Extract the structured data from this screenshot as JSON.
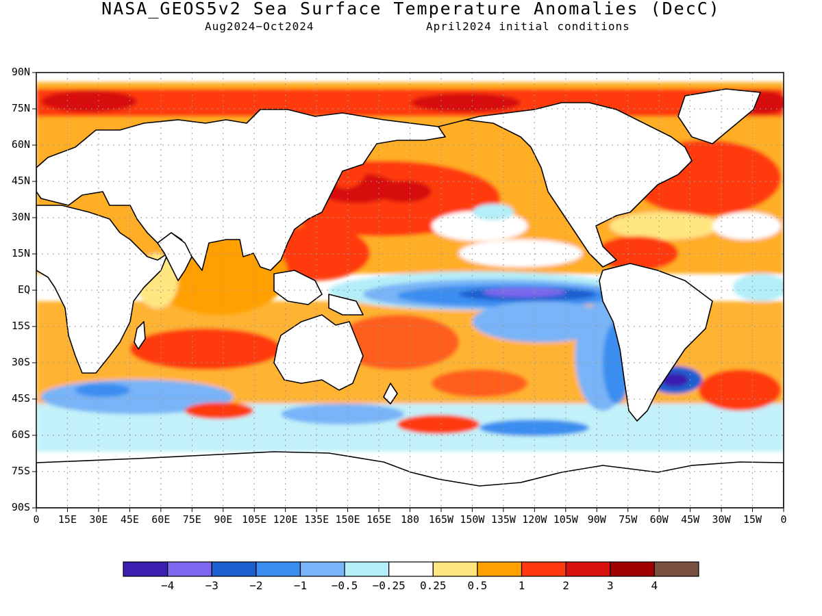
{
  "title": "NASA_GEOS5v2 Sea Surface Temperature Anomalies (DecC)",
  "subtitle_left": "Aug2024−Oct2024",
  "subtitle_right": "April2024 initial conditions",
  "lat_labels": [
    "90N",
    "75N",
    "60N",
    "45N",
    "30N",
    "15N",
    "EQ",
    "15S",
    "30S",
    "45S",
    "60S",
    "75S",
    "90S"
  ],
  "lon_labels": [
    "0",
    "15E",
    "30E",
    "45E",
    "60E",
    "75E",
    "90E",
    "105E",
    "120E",
    "135E",
    "150E",
    "165E",
    "180",
    "165W",
    "150W",
    "135W",
    "120W",
    "105W",
    "90W",
    "75W",
    "60W",
    "45W",
    "30W",
    "15W",
    "0"
  ],
  "colorbar": {
    "colors": [
      "#3a1fb0",
      "#7b68ee",
      "#1c5fd0",
      "#3a8ef0",
      "#78b4f7",
      "#b4eef8",
      "#ffffff",
      "#ffe680",
      "#ffa000",
      "#ff3a10",
      "#d81010",
      "#a00000",
      "#7a5040"
    ],
    "labels": [
      "−4",
      "−3",
      "−2",
      "−1",
      "−0.5",
      "−0.25",
      "0.25",
      "0.5",
      "1",
      "2",
      "3",
      "4"
    ]
  },
  "chart_data": {
    "type": "heatmap",
    "title": "NASA_GEOS5v2 Sea Surface Temperature Anomalies (DecC)",
    "period": "Aug2024−Oct2024",
    "initial_conditions": "April2024 initial conditions",
    "units": "DecC",
    "x_range": [
      0,
      360
    ],
    "y_range": [
      -90,
      90
    ],
    "contour_levels": [
      -4,
      -3,
      -2,
      -1,
      -0.5,
      -0.25,
      0.25,
      0.5,
      1,
      2,
      3,
      4
    ],
    "grid": true
  }
}
